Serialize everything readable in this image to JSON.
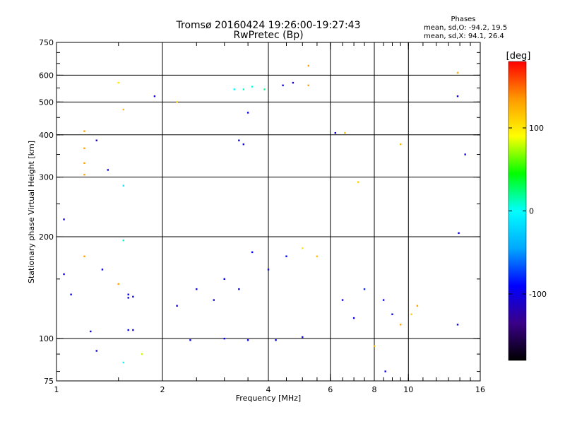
{
  "title": {
    "line1": "Tromsø 20160424 19:26:00-19:27:43",
    "line2": "RwPretec (Bp)"
  },
  "phases": {
    "heading": "Phases",
    "o_line": "mean, sd,O: -94.2, 19.5",
    "x_line": "mean, sd,X:  94.1, 26.4"
  },
  "colorbar": {
    "unit_label": "[deg]",
    "ticks": [
      {
        "value": 100,
        "label": "100"
      },
      {
        "value": 0,
        "label": "0"
      },
      {
        "value": -100,
        "label": "-100"
      }
    ],
    "range": [
      -180,
      180
    ],
    "colors": [
      "#000000",
      "#3a0088",
      "#0000ff",
      "#00a8ff",
      "#00ffff",
      "#00ff00",
      "#ffff00",
      "#ff9900",
      "#ff0000"
    ]
  },
  "chart_data": {
    "type": "scatter",
    "xlabel": "Frequency [MHz]",
    "ylabel": "Stationary phase Virtual Height [km]",
    "x_scale": "log",
    "y_scale": "log",
    "xlim": [
      1,
      16
    ],
    "ylim": [
      75,
      750
    ],
    "x_ticks": [
      1,
      2,
      4,
      6,
      8,
      10,
      16
    ],
    "x_tick_labels": [
      "1",
      "2",
      "4",
      "6",
      "8",
      "10",
      "16"
    ],
    "x_gridlines": [
      2,
      4,
      6,
      8,
      10
    ],
    "y_ticks": [
      75,
      100,
      200,
      300,
      400,
      500,
      600,
      750
    ],
    "y_tick_labels": [
      "75",
      "100",
      "200",
      "300",
      "400",
      "500",
      "600",
      "750"
    ],
    "y_gridlines": [
      100,
      200,
      300,
      400,
      500,
      600
    ],
    "grid": true,
    "series": [
      {
        "points": [
          {
            "x": 1.05,
            "y": 225,
            "phase": -100
          },
          {
            "x": 1.2,
            "y": 410,
            "phase": 130
          },
          {
            "x": 1.2,
            "y": 365,
            "phase": 130
          },
          {
            "x": 1.2,
            "y": 330,
            "phase": 130
          },
          {
            "x": 1.2,
            "y": 305,
            "phase": 130
          },
          {
            "x": 1.25,
            "y": 105,
            "phase": -100
          },
          {
            "x": 1.3,
            "y": 92,
            "phase": -100
          },
          {
            "x": 1.3,
            "y": 385,
            "phase": -110
          },
          {
            "x": 1.4,
            "y": 315,
            "phase": -100
          },
          {
            "x": 1.5,
            "y": 570,
            "phase": 100
          },
          {
            "x": 1.55,
            "y": 475,
            "phase": 120
          },
          {
            "x": 1.55,
            "y": 283,
            "phase": -10
          },
          {
            "x": 1.55,
            "y": 195,
            "phase": 10
          },
          {
            "x": 1.6,
            "y": 135,
            "phase": -90
          },
          {
            "x": 1.6,
            "y": 132,
            "phase": -100
          },
          {
            "x": 1.65,
            "y": 133,
            "phase": -95
          },
          {
            "x": 1.6,
            "y": 106,
            "phase": -90
          },
          {
            "x": 1.65,
            "y": 106,
            "phase": -100
          },
          {
            "x": 1.55,
            "y": 85,
            "phase": 0
          },
          {
            "x": 1.75,
            "y": 90,
            "phase": 80
          },
          {
            "x": 1.9,
            "y": 520,
            "phase": -100
          },
          {
            "x": 2.2,
            "y": 500,
            "phase": 110
          },
          {
            "x": 3.2,
            "y": 545,
            "phase": 0
          },
          {
            "x": 3.4,
            "y": 545,
            "phase": 10
          },
          {
            "x": 3.6,
            "y": 555,
            "phase": 5
          },
          {
            "x": 3.9,
            "y": 545,
            "phase": 20
          },
          {
            "x": 4.4,
            "y": 560,
            "phase": -100
          },
          {
            "x": 4.7,
            "y": 570,
            "phase": -110
          },
          {
            "x": 5.2,
            "y": 640,
            "phase": 130
          },
          {
            "x": 5.2,
            "y": 560,
            "phase": 130
          },
          {
            "x": 3.5,
            "y": 465,
            "phase": -90
          },
          {
            "x": 3.3,
            "y": 385,
            "phase": -100
          },
          {
            "x": 3.4,
            "y": 375,
            "phase": -100
          },
          {
            "x": 6.2,
            "y": 405,
            "phase": -100
          },
          {
            "x": 6.6,
            "y": 405,
            "phase": 120
          },
          {
            "x": 9.5,
            "y": 375,
            "phase": 120
          },
          {
            "x": 13.8,
            "y": 610,
            "phase": 130
          },
          {
            "x": 13.8,
            "y": 520,
            "phase": -100
          },
          {
            "x": 14.5,
            "y": 350,
            "phase": -100
          },
          {
            "x": 13.9,
            "y": 205,
            "phase": -100
          },
          {
            "x": 2.2,
            "y": 125,
            "phase": -100
          },
          {
            "x": 2.5,
            "y": 140,
            "phase": -90
          },
          {
            "x": 2.8,
            "y": 130,
            "phase": -100
          },
          {
            "x": 3.0,
            "y": 150,
            "phase": -95
          },
          {
            "x": 3.3,
            "y": 140,
            "phase": -100
          },
          {
            "x": 3.6,
            "y": 180,
            "phase": -95
          },
          {
            "x": 4.0,
            "y": 160,
            "phase": -100
          },
          {
            "x": 4.5,
            "y": 175,
            "phase": -90
          },
          {
            "x": 5.0,
            "y": 185,
            "phase": 100
          },
          {
            "x": 5.5,
            "y": 175,
            "phase": 120
          },
          {
            "x": 2.4,
            "y": 99,
            "phase": -100
          },
          {
            "x": 3.0,
            "y": 100,
            "phase": -100
          },
          {
            "x": 3.5,
            "y": 99,
            "phase": -100
          },
          {
            "x": 4.2,
            "y": 99,
            "phase": -100
          },
          {
            "x": 5.0,
            "y": 101,
            "phase": -95
          },
          {
            "x": 6.5,
            "y": 130,
            "phase": -100
          },
          {
            "x": 7.0,
            "y": 115,
            "phase": -100
          },
          {
            "x": 7.5,
            "y": 140,
            "phase": -80
          },
          {
            "x": 8.5,
            "y": 130,
            "phase": -90
          },
          {
            "x": 9.0,
            "y": 118,
            "phase": -100
          },
          {
            "x": 9.5,
            "y": 110,
            "phase": 130
          },
          {
            "x": 10.2,
            "y": 118,
            "phase": 110
          },
          {
            "x": 10.6,
            "y": 125,
            "phase": 130
          },
          {
            "x": 13.8,
            "y": 110,
            "phase": -100
          },
          {
            "x": 1.05,
            "y": 155,
            "phase": -100
          },
          {
            "x": 1.1,
            "y": 135,
            "phase": -90
          },
          {
            "x": 1.35,
            "y": 160,
            "phase": -100
          },
          {
            "x": 1.2,
            "y": 175,
            "phase": 130
          },
          {
            "x": 1.5,
            "y": 145,
            "phase": 130
          },
          {
            "x": 7.2,
            "y": 290,
            "phase": 110
          },
          {
            "x": 8.0,
            "y": 95,
            "phase": 120
          },
          {
            "x": 8.6,
            "y": 80,
            "phase": -100
          }
        ]
      }
    ]
  }
}
